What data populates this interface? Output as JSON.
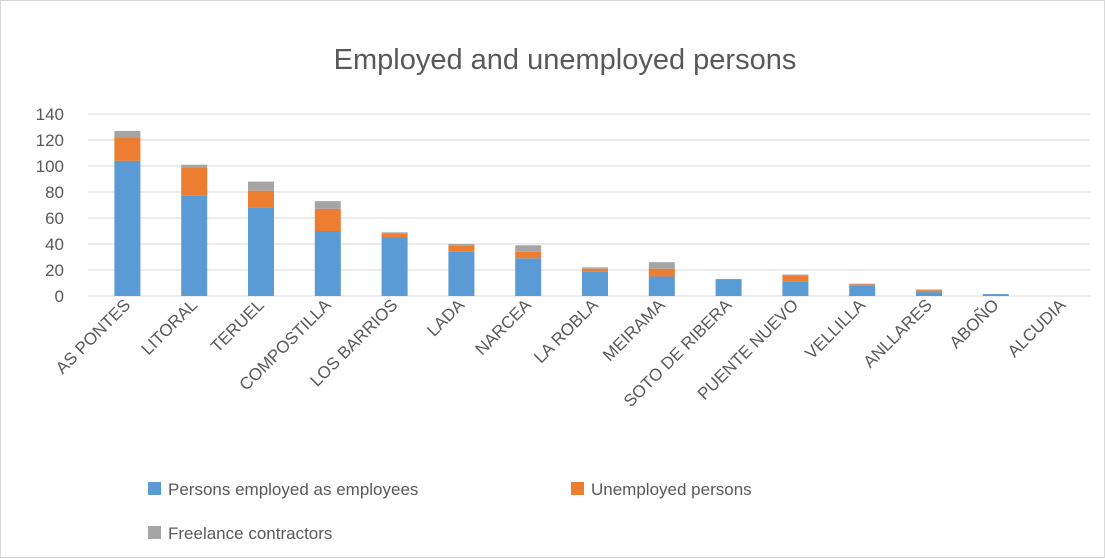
{
  "chart_data": {
    "type": "bar",
    "stacked": true,
    "title": "Employed and unemployed persons",
    "xlabel": "",
    "ylabel": "",
    "ylim": [
      0,
      140
    ],
    "yticks": [
      0,
      20,
      40,
      60,
      80,
      100,
      120,
      140
    ],
    "grid": true,
    "legend_position": "bottom",
    "categories": [
      "AS PONTES",
      "LITORAL",
      "TERUEL",
      "COMPOSTILLA",
      "LOS BARRIOS",
      "LADA",
      "NARCEA",
      "LA ROBLA",
      "MEIRAMA",
      "SOTO DE RIBERA",
      "PUENTE NUEVO",
      "VELLILLA",
      "ANLLARES",
      "ABOÑO",
      "ALCUDIA"
    ],
    "series": [
      {
        "name": "Persons employed as employees",
        "color": "#5b9bd5",
        "values": [
          104,
          77,
          68,
          50,
          45,
          34,
          29,
          19,
          15,
          13,
          11,
          8,
          3,
          1.5,
          0
        ]
      },
      {
        "name": "Unemployed persons",
        "color": "#ed7d31",
        "values": [
          18,
          22,
          13,
          17,
          3,
          5,
          5,
          2,
          6,
          0,
          5,
          1,
          1.5,
          0,
          0
        ]
      },
      {
        "name": "Freelance contractors",
        "color": "#a5a5a5",
        "values": [
          5,
          2,
          7,
          6,
          1,
          1,
          5,
          1,
          5,
          0,
          0.5,
          0.5,
          0.5,
          0,
          0
        ]
      }
    ]
  }
}
